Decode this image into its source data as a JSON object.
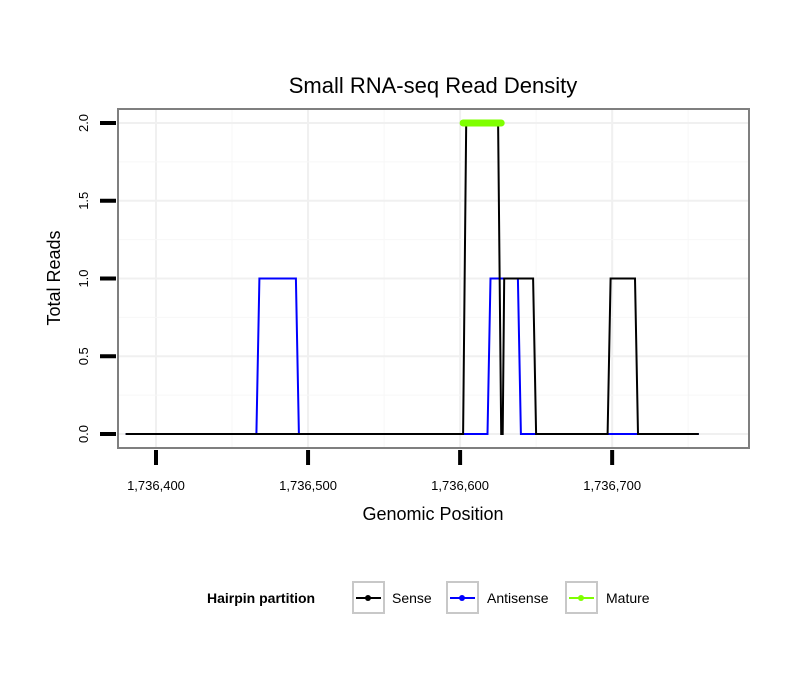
{
  "chart_data": {
    "type": "line",
    "title": "Small RNA-seq Read Density",
    "xlabel": "Genomic Position",
    "ylabel": "Total Reads",
    "xlim": [
      1736375,
      1736790
    ],
    "ylim": [
      -0.09,
      2.09
    ],
    "x_ticks": [
      1736400,
      1736500,
      1736600,
      1736700
    ],
    "x_tick_labels": [
      "1,736,400",
      "1,736,500",
      "1,736,600",
      "1,736,700"
    ],
    "y_ticks": [
      0,
      0.5,
      1,
      1.5,
      2
    ],
    "y_tick_labels": [
      "0.0",
      "0.5",
      "1.0",
      "1.5",
      "2.0"
    ],
    "grid": true,
    "legend": {
      "title": "Hairpin partition",
      "position": "bottom"
    },
    "series": [
      {
        "name": "Sense",
        "color": "#000000",
        "x": [
          1736380,
          1736602,
          1736604,
          1736625,
          1736627,
          1736628,
          1736629,
          1736648,
          1736650,
          1736697,
          1736699,
          1736715,
          1736717,
          1736757
        ],
        "y": [
          0,
          0,
          2,
          2,
          0,
          0,
          1,
          1,
          0,
          0,
          1,
          1,
          0,
          0
        ]
      },
      {
        "name": "Antisense",
        "color": "#0000FF",
        "x": [
          1736380,
          1736466,
          1736468,
          1736492,
          1736494,
          1736618,
          1736620,
          1736638,
          1736640,
          1736757
        ],
        "y": [
          0,
          0,
          1,
          1,
          0,
          0,
          1,
          1,
          0,
          0
        ]
      },
      {
        "name": "Mature",
        "color": "#7FFF00",
        "x": [
          1736602,
          1736627
        ],
        "y": [
          2,
          2
        ]
      }
    ]
  }
}
